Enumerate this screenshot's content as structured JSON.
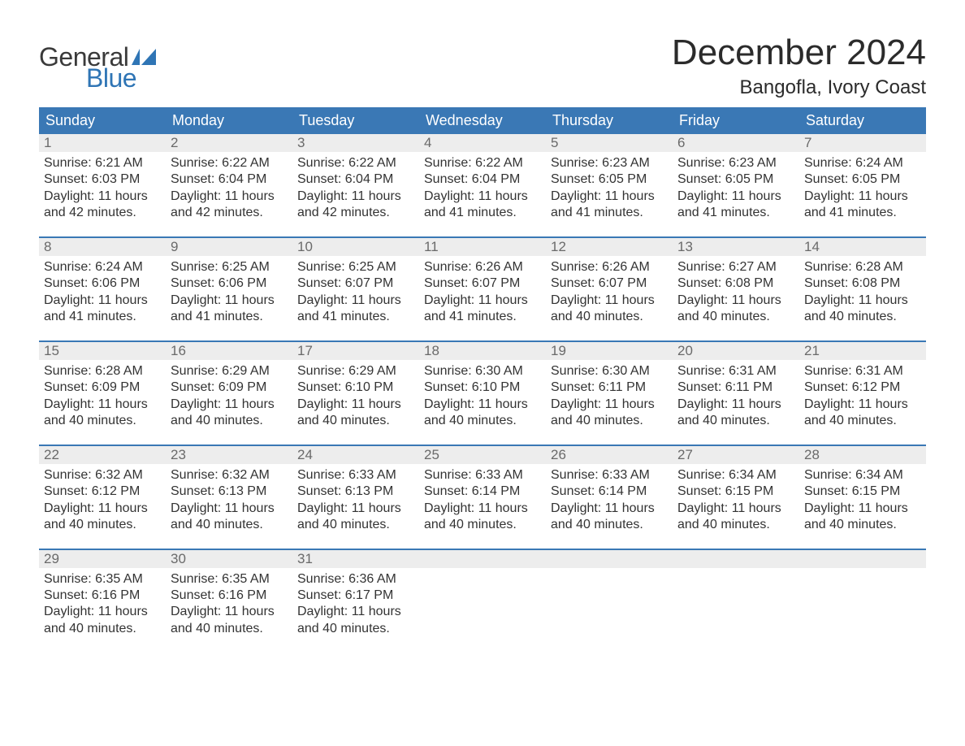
{
  "brand": {
    "word1": "General",
    "word2": "Blue",
    "flag_color": "#2f75b5"
  },
  "title": "December 2024",
  "location": "Bangofla, Ivory Coast",
  "colors": {
    "header_bg": "#3a78b5",
    "header_text": "#ffffff",
    "daynum_bg": "#ededed",
    "daynum_text": "#6a6a6a",
    "body_text": "#333333",
    "week_border": "#3a78b5",
    "page_bg": "#ffffff",
    "title_text": "#2b2b2b"
  },
  "typography": {
    "title_fontsize": 44,
    "location_fontsize": 24,
    "dow_fontsize": 18,
    "daynum_fontsize": 17,
    "body_fontsize": 16,
    "font_family": "Arial"
  },
  "days_of_week": [
    "Sunday",
    "Monday",
    "Tuesday",
    "Wednesday",
    "Thursday",
    "Friday",
    "Saturday"
  ],
  "labels": {
    "sunrise": "Sunrise:",
    "sunset": "Sunset:",
    "daylight": "Daylight:"
  },
  "weeks": [
    [
      {
        "n": "1",
        "sunrise": "6:21 AM",
        "sunset": "6:03 PM",
        "daylight": "11 hours and 42 minutes."
      },
      {
        "n": "2",
        "sunrise": "6:22 AM",
        "sunset": "6:04 PM",
        "daylight": "11 hours and 42 minutes."
      },
      {
        "n": "3",
        "sunrise": "6:22 AM",
        "sunset": "6:04 PM",
        "daylight": "11 hours and 42 minutes."
      },
      {
        "n": "4",
        "sunrise": "6:22 AM",
        "sunset": "6:04 PM",
        "daylight": "11 hours and 41 minutes."
      },
      {
        "n": "5",
        "sunrise": "6:23 AM",
        "sunset": "6:05 PM",
        "daylight": "11 hours and 41 minutes."
      },
      {
        "n": "6",
        "sunrise": "6:23 AM",
        "sunset": "6:05 PM",
        "daylight": "11 hours and 41 minutes."
      },
      {
        "n": "7",
        "sunrise": "6:24 AM",
        "sunset": "6:05 PM",
        "daylight": "11 hours and 41 minutes."
      }
    ],
    [
      {
        "n": "8",
        "sunrise": "6:24 AM",
        "sunset": "6:06 PM",
        "daylight": "11 hours and 41 minutes."
      },
      {
        "n": "9",
        "sunrise": "6:25 AM",
        "sunset": "6:06 PM",
        "daylight": "11 hours and 41 minutes."
      },
      {
        "n": "10",
        "sunrise": "6:25 AM",
        "sunset": "6:07 PM",
        "daylight": "11 hours and 41 minutes."
      },
      {
        "n": "11",
        "sunrise": "6:26 AM",
        "sunset": "6:07 PM",
        "daylight": "11 hours and 41 minutes."
      },
      {
        "n": "12",
        "sunrise": "6:26 AM",
        "sunset": "6:07 PM",
        "daylight": "11 hours and 40 minutes."
      },
      {
        "n": "13",
        "sunrise": "6:27 AM",
        "sunset": "6:08 PM",
        "daylight": "11 hours and 40 minutes."
      },
      {
        "n": "14",
        "sunrise": "6:28 AM",
        "sunset": "6:08 PM",
        "daylight": "11 hours and 40 minutes."
      }
    ],
    [
      {
        "n": "15",
        "sunrise": "6:28 AM",
        "sunset": "6:09 PM",
        "daylight": "11 hours and 40 minutes."
      },
      {
        "n": "16",
        "sunrise": "6:29 AM",
        "sunset": "6:09 PM",
        "daylight": "11 hours and 40 minutes."
      },
      {
        "n": "17",
        "sunrise": "6:29 AM",
        "sunset": "6:10 PM",
        "daylight": "11 hours and 40 minutes."
      },
      {
        "n": "18",
        "sunrise": "6:30 AM",
        "sunset": "6:10 PM",
        "daylight": "11 hours and 40 minutes."
      },
      {
        "n": "19",
        "sunrise": "6:30 AM",
        "sunset": "6:11 PM",
        "daylight": "11 hours and 40 minutes."
      },
      {
        "n": "20",
        "sunrise": "6:31 AM",
        "sunset": "6:11 PM",
        "daylight": "11 hours and 40 minutes."
      },
      {
        "n": "21",
        "sunrise": "6:31 AM",
        "sunset": "6:12 PM",
        "daylight": "11 hours and 40 minutes."
      }
    ],
    [
      {
        "n": "22",
        "sunrise": "6:32 AM",
        "sunset": "6:12 PM",
        "daylight": "11 hours and 40 minutes."
      },
      {
        "n": "23",
        "sunrise": "6:32 AM",
        "sunset": "6:13 PM",
        "daylight": "11 hours and 40 minutes."
      },
      {
        "n": "24",
        "sunrise": "6:33 AM",
        "sunset": "6:13 PM",
        "daylight": "11 hours and 40 minutes."
      },
      {
        "n": "25",
        "sunrise": "6:33 AM",
        "sunset": "6:14 PM",
        "daylight": "11 hours and 40 minutes."
      },
      {
        "n": "26",
        "sunrise": "6:33 AM",
        "sunset": "6:14 PM",
        "daylight": "11 hours and 40 minutes."
      },
      {
        "n": "27",
        "sunrise": "6:34 AM",
        "sunset": "6:15 PM",
        "daylight": "11 hours and 40 minutes."
      },
      {
        "n": "28",
        "sunrise": "6:34 AM",
        "sunset": "6:15 PM",
        "daylight": "11 hours and 40 minutes."
      }
    ],
    [
      {
        "n": "29",
        "sunrise": "6:35 AM",
        "sunset": "6:16 PM",
        "daylight": "11 hours and 40 minutes."
      },
      {
        "n": "30",
        "sunrise": "6:35 AM",
        "sunset": "6:16 PM",
        "daylight": "11 hours and 40 minutes."
      },
      {
        "n": "31",
        "sunrise": "6:36 AM",
        "sunset": "6:17 PM",
        "daylight": "11 hours and 40 minutes."
      },
      null,
      null,
      null,
      null
    ]
  ]
}
